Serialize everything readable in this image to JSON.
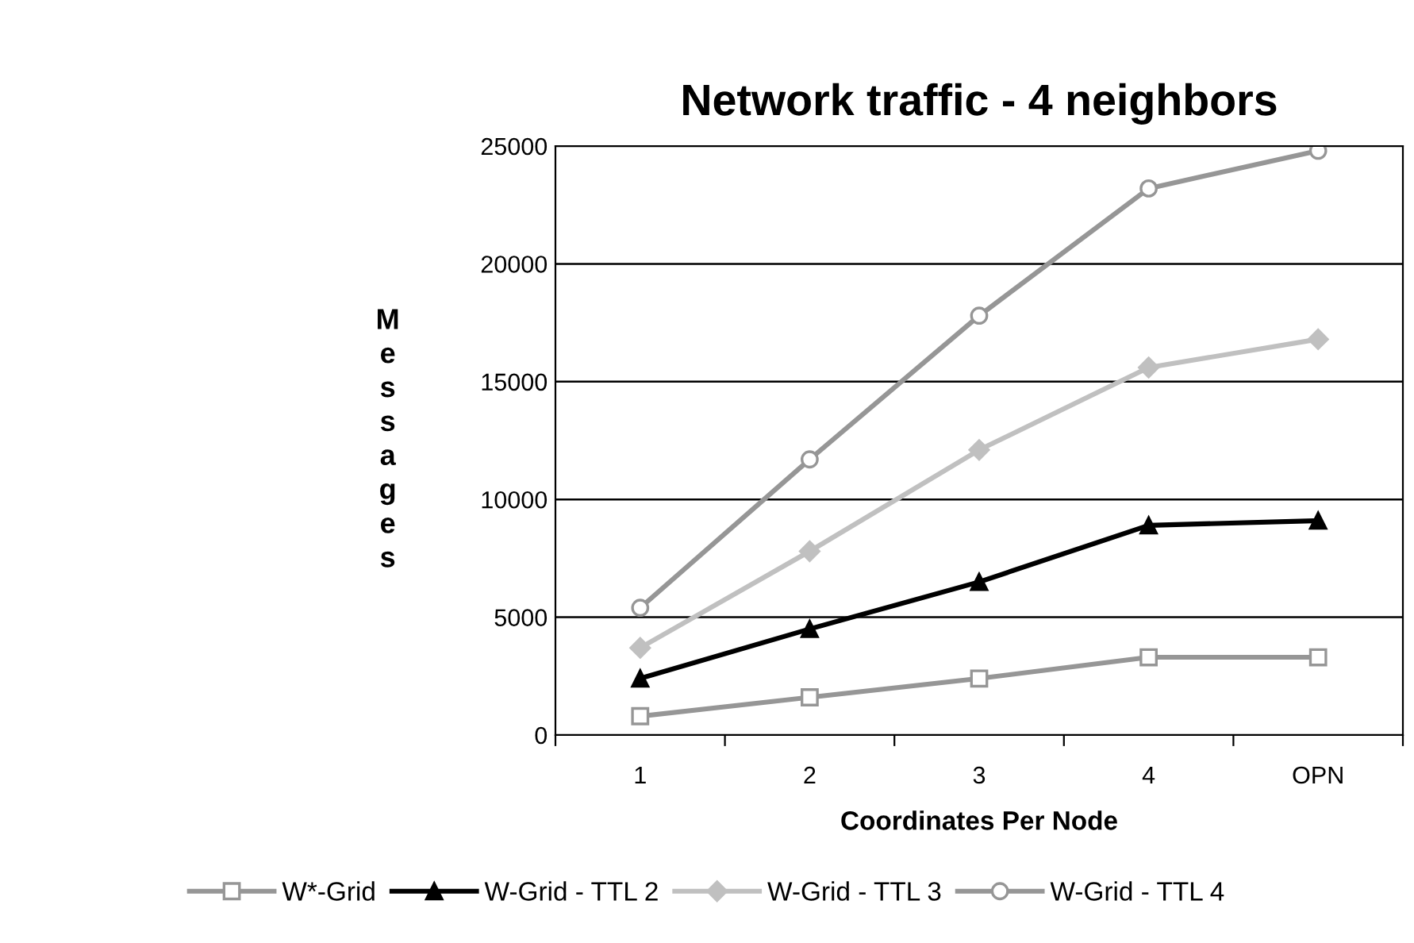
{
  "chart_data": {
    "type": "line",
    "title": "Network traffic - 4 neighbors",
    "xlabel": "Coordinates Per Node",
    "ylabel": "Messages",
    "categories": [
      "1",
      "2",
      "3",
      "4",
      "OPN"
    ],
    "series": [
      {
        "name": "W*-Grid",
        "color": "#969696",
        "marker": "square",
        "values": [
          800,
          1600,
          2400,
          3300,
          3300
        ]
      },
      {
        "name": "W-Grid - TTL 2",
        "color": "#000000",
        "marker": "triangle",
        "values": [
          2400,
          4500,
          6500,
          8900,
          9100
        ]
      },
      {
        "name": "W-Grid - TTL 3",
        "color": "#c0c0c0",
        "marker": "diamond",
        "values": [
          3700,
          7800,
          12100,
          15600,
          16800
        ]
      },
      {
        "name": "W-Grid - TTL 4",
        "color": "#969696",
        "marker": "circle",
        "values": [
          5400,
          11700,
          17800,
          23200,
          24800
        ]
      }
    ],
    "ylim": [
      0,
      25000
    ],
    "yticks": [
      0,
      5000,
      10000,
      15000,
      20000,
      25000
    ],
    "grid": "y",
    "legend": "bottom",
    "line_style": "solid"
  }
}
